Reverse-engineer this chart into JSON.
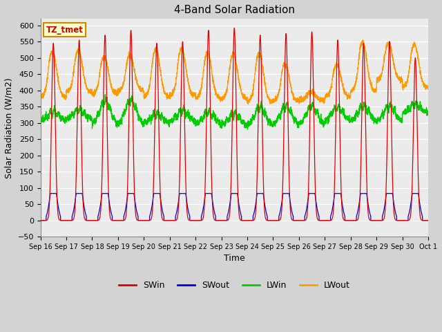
{
  "title": "4-Band Solar Radiation",
  "xlabel": "Time",
  "ylabel": "Solar Radiation (W/m2)",
  "ylim": [
    -50,
    620
  ],
  "yticks": [
    -50,
    0,
    50,
    100,
    150,
    200,
    250,
    300,
    350,
    400,
    450,
    500,
    550,
    600
  ],
  "fig_bg": "#d3d3d3",
  "plot_bg": "#ebebeb",
  "grid_color": "#ffffff",
  "colors": {
    "SWin": "#dd0000",
    "SWout": "#0000dd",
    "LWin": "#00cc00",
    "LWout": "#ff9900"
  },
  "annotation_box": {
    "text": "TZ_tmet",
    "facecolor": "#ffffcc",
    "edgecolor": "#cc8800",
    "textcolor": "#cc0000"
  },
  "n_days": 15,
  "start_day": 16,
  "ppd": 288,
  "sw_peaks": [
    545,
    555,
    570,
    585,
    545,
    550,
    585,
    592,
    570,
    575,
    580,
    555,
    545,
    550,
    500
  ],
  "lwout_night": [
    380,
    395,
    390,
    400,
    380,
    385,
    375,
    375,
    365,
    368,
    370,
    380,
    398,
    432,
    410
  ],
  "lwout_day_peak": [
    515,
    520,
    500,
    505,
    522,
    525,
    512,
    510,
    510,
    478,
    395,
    475,
    545,
    542,
    538
  ],
  "lwin_night": [
    305,
    310,
    290,
    290,
    298,
    303,
    293,
    292,
    288,
    292,
    292,
    303,
    303,
    302,
    328
  ],
  "lwin_day_peak": [
    335,
    340,
    368,
    370,
    328,
    338,
    333,
    328,
    348,
    352,
    352,
    348,
    352,
    352,
    358
  ],
  "swout_peak": 83
}
